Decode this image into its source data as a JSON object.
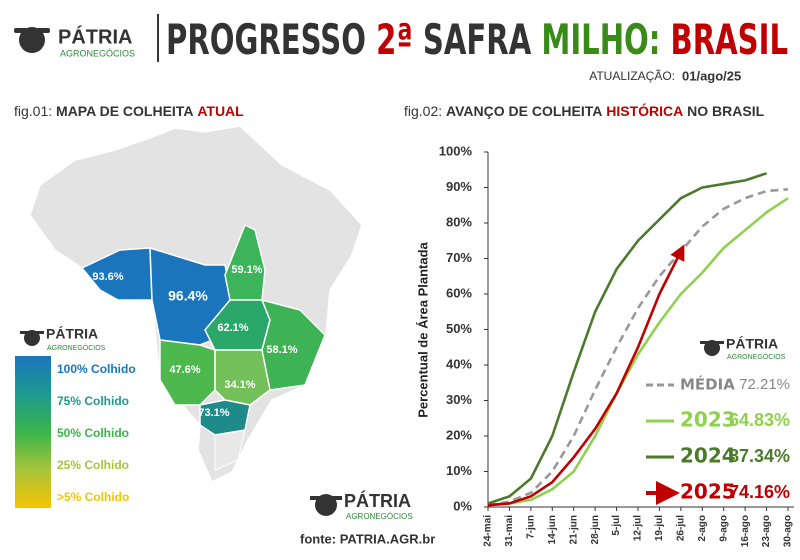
{
  "header": {
    "brand": "PÁTRIA",
    "brand_sub": "AGRONEGÓCIOS",
    "title_parts": [
      "PROGRESSO",
      "2ª",
      "SAFRA",
      "MILHO:",
      "BRASIL"
    ],
    "update_label": "ATUALIZAÇÃO:",
    "update_date": "01/ago/25"
  },
  "source": "fonte: PATRIA.AGR.br",
  "chart_data": [
    {
      "type": "map",
      "fig": "fig.01:",
      "title": "MAPA DE COLHEITA",
      "title_highlight": "ATUAL",
      "values": [
        93.6,
        96.4,
        59.1,
        62.1,
        58.1,
        47.6,
        34.1,
        73.1
      ],
      "value_labels": [
        "93.6%",
        "96.4%",
        "59.1%",
        "62.1%",
        "58.1%",
        "47.6%",
        "34.1%",
        "73.1%"
      ],
      "colors": [
        "#1b75bc",
        "#1b75bc",
        "#3cb55a",
        "#2aa86a",
        "#3db356",
        "#4cb84e",
        "#74c05a",
        "#1e8a8a"
      ],
      "legend": [
        "100% Colhido",
        "75% Colhido",
        "50% Colhido",
        "25% Colhido",
        ">5% Colhido"
      ],
      "legend_colors": [
        "#1b75bc",
        "#1e9a8f",
        "#3ab54a",
        "#a8c43a",
        "#f5c400"
      ]
    },
    {
      "type": "line",
      "fig": "fig.02:",
      "title": "AVANÇO DE COLHEITA",
      "title_highlight": "HISTÓRICA",
      "title_end": "NO BRASIL",
      "y_label": "Percentual de Área Plantada",
      "categories": [
        "24-mai",
        "31-mai",
        "7-jun",
        "14-jun",
        "21-jun",
        "28-jun",
        "5-jul",
        "12-jul",
        "19-jul",
        "26-jul",
        "2-ago",
        "9-ago",
        "16-ago",
        "23-ago",
        "30-ago"
      ],
      "ylim": [
        0,
        100
      ],
      "yticks": [
        {
          "value": 0,
          "label": "0%"
        },
        {
          "value": 10,
          "label": "10%"
        },
        {
          "value": 20,
          "label": "20%"
        },
        {
          "value": 30,
          "label": "30%"
        },
        {
          "value": 40,
          "label": "40%"
        },
        {
          "value": 50,
          "label": "50%"
        },
        {
          "value": 60,
          "label": "60%"
        },
        {
          "value": 70,
          "label": "70%"
        },
        {
          "value": 80,
          "label": "80%"
        },
        {
          "value": 90,
          "label": "90%"
        },
        {
          "value": 100,
          "label": "100%"
        }
      ],
      "grid": false,
      "series": [
        {
          "name": "MÉDIA",
          "color": "#999999",
          "dashed": true,
          "current": 72.21,
          "current_label": "72.21%",
          "values": [
            0.5,
            1.5,
            4,
            10,
            20,
            33,
            45,
            56,
            65,
            72,
            79,
            84,
            87,
            89,
            89.5
          ]
        },
        {
          "name": "2023",
          "color": "#8fd14f",
          "current": 64.83,
          "current_label": "64.83%",
          "values": [
            0.5,
            1,
            2,
            5,
            10,
            20,
            32,
            43,
            52,
            60,
            66,
            73,
            78,
            83,
            87
          ]
        },
        {
          "name": "2024",
          "color": "#4c7a2b",
          "current": 87.34,
          "current_label": "87.34%",
          "values": [
            1,
            3,
            8,
            20,
            38,
            55,
            67,
            75,
            81,
            87,
            90,
            91,
            92,
            94,
            null
          ]
        },
        {
          "name": "2025",
          "color": "#c00000",
          "arrow": true,
          "current": 74.16,
          "current_label": "74.16%",
          "values": [
            0.5,
            1,
            3,
            7,
            14,
            22,
            32,
            45,
            60,
            72,
            null,
            null,
            null,
            null,
            null
          ]
        }
      ]
    }
  ]
}
